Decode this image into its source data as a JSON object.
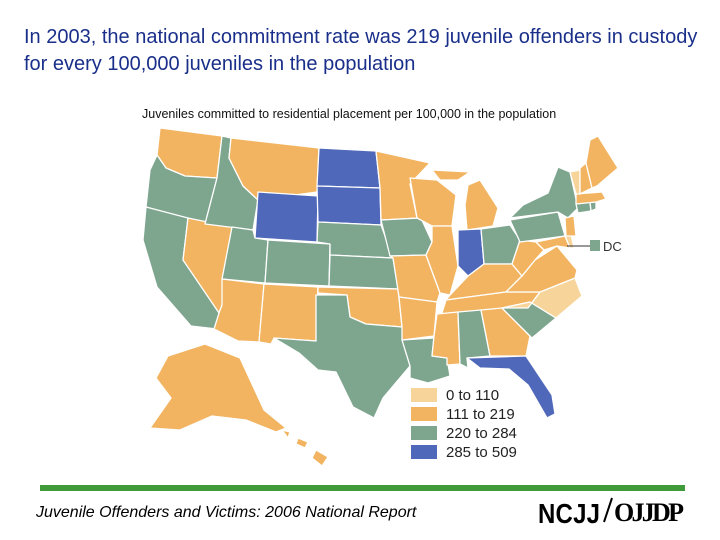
{
  "title": "In 2003, the national commitment rate was 219 juvenile offenders in custody for every 100,000 juveniles in the population",
  "map_title": "Juveniles committed to residential placement per 100,000 in the population",
  "dc_label": "DC",
  "legend": [
    {
      "label": "0 to 110",
      "color": "#f7d59a"
    },
    {
      "label": "111 to 219",
      "color": "#f2b460"
    },
    {
      "label": "220 to 284",
      "color": "#7ea58e"
    },
    {
      "label": "285 to 509",
      "color": "#4f68b9"
    }
  ],
  "colors": {
    "background": "#ffffff",
    "state_border": "#ffffff",
    "title": "#1a2f8a",
    "rule": "#3f9a3a"
  },
  "footer": "Juvenile Offenders and Victims: 2006 National Report",
  "logo": {
    "left": "NCJJ",
    "right": "OJJDP"
  }
}
